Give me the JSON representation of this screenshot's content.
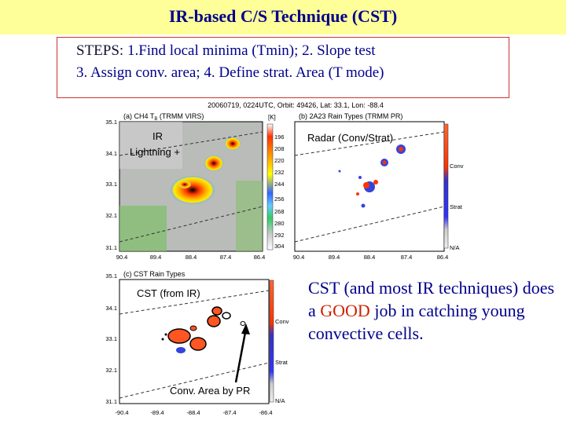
{
  "slide": {
    "title": "IR-based C/S Technique (CST)",
    "steps_line1_prefix": "STEPS: ",
    "steps_line1": "1.Find local minima (Tmin);  2. Slope test",
    "steps_line2": "3. Assign conv. area;  4. Define strat. Area (T mode)",
    "right_text_part1": "CST (and most IR techniques) does a ",
    "right_text_good": "GOOD",
    "right_text_part2": " job in catching young convective cells.",
    "colors": {
      "title_bg": "#ffff99",
      "title_text": "#00008b",
      "box_border": "#cc3333",
      "good": "#cc2200"
    }
  },
  "figure": {
    "header": "20060719, 0224UTC, Orbit: 49426, Lat: 33.1, Lon: -88.4",
    "panel_a": {
      "title": "(a) CH4 T",
      "title_sub": "B",
      "title_rest": " (TRMM VIRS)",
      "unit": "[K]",
      "colorbar_ticks": [
        "196",
        "208",
        "220",
        "232",
        "244",
        "256",
        "268",
        "280",
        "292",
        "304"
      ],
      "overlay_ir": "IR",
      "overlay_lightning": "Lightning +"
    },
    "panel_b": {
      "title": "(b) 2A23 Rain Types (TRMM PR)",
      "overlay": "Radar (Conv/Strat)",
      "legend": [
        "Conv",
        "Strat",
        "N/A"
      ]
    },
    "panel_c": {
      "title": "(c) CST Rain Types",
      "overlay": "CST (from IR)",
      "arrow_label": "Conv. Area by PR",
      "legend": [
        "Conv",
        "Strat",
        "N/A"
      ]
    },
    "y_ticks": [
      "35.1",
      "34.1",
      "33.1",
      "32.1",
      "31.1"
    ],
    "x_ticks": [
      "90.4",
      "89.4",
      "88.4",
      "87.4",
      "86.4"
    ],
    "x_ticks_c": [
      "-90.4",
      "-89.4",
      "-88.4",
      "-87.4",
      "-86.4"
    ]
  }
}
